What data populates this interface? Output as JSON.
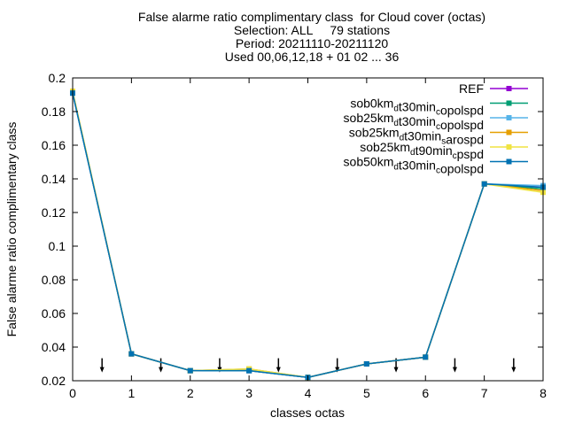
{
  "chart_data": {
    "type": "line",
    "title_lines": [
      "False alarme ratio complimentary class  for Cloud cover (octas)",
      "Selection: ALL     79 stations",
      "Period: 20211110-20211120",
      "Used 00,06,12,18 + 01 02 ... 36"
    ],
    "xlabel": "classes octas",
    "ylabel": "False alarme ratio complimentary class",
    "xlim": [
      0,
      8
    ],
    "ylim": [
      0.02,
      0.2
    ],
    "xticks": [
      "0",
      "1",
      "2",
      "3",
      "4",
      "5",
      "6",
      "7",
      "8"
    ],
    "yticks": [
      "0.02",
      "0.04",
      "0.06",
      "0.08",
      "0.1",
      "0.12",
      "0.14",
      "0.16",
      "0.18",
      "0.2"
    ],
    "legend_position": "top-right",
    "x": [
      0,
      1,
      2,
      3,
      4,
      5,
      6,
      7,
      8
    ],
    "series": [
      {
        "name": "REF",
        "name_parts": [
          [
            "REF",
            ""
          ]
        ],
        "color": "#9400d3",
        "values": [
          0.191,
          0.036,
          0.026,
          0.026,
          0.022,
          0.03,
          0.034,
          0.137,
          0.135
        ]
      },
      {
        "name": "sob0km_d t30min_c opolspd",
        "name_parts": [
          [
            "sob0km",
            ""
          ],
          [
            "d",
            "sub"
          ],
          [
            "t30min",
            ""
          ],
          [
            "c",
            "sub"
          ],
          [
            "opolspd",
            ""
          ]
        ],
        "color": "#009e73",
        "values": [
          0.191,
          0.036,
          0.026,
          0.026,
          0.022,
          0.03,
          0.034,
          0.137,
          0.134
        ]
      },
      {
        "name": "sob25km_d t30min_c opolspd",
        "name_parts": [
          [
            "sob25km",
            ""
          ],
          [
            "d",
            "sub"
          ],
          [
            "t30min",
            ""
          ],
          [
            "c",
            "sub"
          ],
          [
            "opolspd",
            ""
          ]
        ],
        "color": "#56b4e9",
        "values": [
          0.191,
          0.036,
          0.026,
          0.026,
          0.022,
          0.03,
          0.034,
          0.137,
          0.136
        ]
      },
      {
        "name": "sob25km_d t30min_s arospd",
        "name_parts": [
          [
            "sob25km",
            ""
          ],
          [
            "d",
            "sub"
          ],
          [
            "t30min",
            ""
          ],
          [
            "s",
            "sub"
          ],
          [
            "arospd",
            ""
          ]
        ],
        "color": "#e69f00",
        "values": [
          0.192,
          0.036,
          0.026,
          0.027,
          0.022,
          0.03,
          0.034,
          0.137,
          0.133
        ]
      },
      {
        "name": "sob25km_d t90min_c pspd",
        "name_parts": [
          [
            "sob25km",
            ""
          ],
          [
            "d",
            "sub"
          ],
          [
            "t90min",
            ""
          ],
          [
            "c",
            "sub"
          ],
          [
            "pspd",
            ""
          ]
        ],
        "color": "#f0e442",
        "values": [
          0.192,
          0.036,
          0.026,
          0.027,
          0.022,
          0.03,
          0.034,
          0.137,
          0.132
        ]
      },
      {
        "name": "sob50km_d t30min_c opolspd",
        "name_parts": [
          [
            "sob50km",
            ""
          ],
          [
            "d",
            "sub"
          ],
          [
            "t30min",
            ""
          ],
          [
            "c",
            "sub"
          ],
          [
            "opolspd",
            ""
          ]
        ],
        "color": "#0072b2",
        "values": [
          0.191,
          0.036,
          0.026,
          0.026,
          0.022,
          0.03,
          0.034,
          0.137,
          0.135
        ]
      }
    ],
    "arrow_markers": [
      {
        "x": 0.5,
        "y": 0.026
      },
      {
        "x": 1.5,
        "y": 0.026
      },
      {
        "x": 2.5,
        "y": 0.026
      },
      {
        "x": 3.5,
        "y": 0.026
      },
      {
        "x": 4.5,
        "y": 0.026
      },
      {
        "x": 5.5,
        "y": 0.026
      },
      {
        "x": 6.5,
        "y": 0.026
      },
      {
        "x": 7.5,
        "y": 0.026
      }
    ]
  }
}
